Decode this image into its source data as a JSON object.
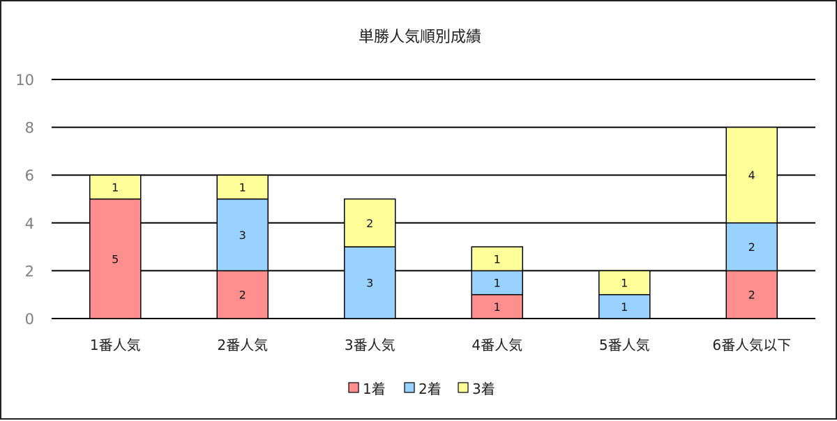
{
  "chart_data": {
    "type": "bar",
    "title": "単勝人気順別成績",
    "xlabel": "",
    "ylabel": "",
    "ylim": [
      0,
      10
    ],
    "yticks": [
      0,
      2,
      4,
      6,
      8,
      10
    ],
    "grid": true,
    "stacked": true,
    "legend_position": "bottom",
    "categories": [
      "1番人気",
      "2番人気",
      "3番人気",
      "4番人気",
      "5番人気",
      "6番人気以下"
    ],
    "series": [
      {
        "name": "1着",
        "color": "#ff8f8f",
        "values": [
          5,
          2,
          0,
          1,
          0,
          2
        ]
      },
      {
        "name": "2着",
        "color": "#99d1ff",
        "values": [
          0,
          3,
          3,
          1,
          1,
          2
        ]
      },
      {
        "name": "3着",
        "color": "#ffff99",
        "values": [
          1,
          1,
          2,
          1,
          1,
          4
        ]
      }
    ]
  }
}
